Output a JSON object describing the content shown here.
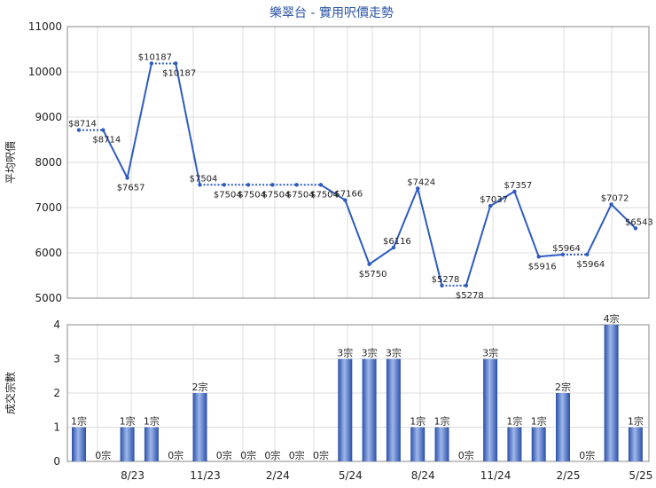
{
  "chart_data": [
    {
      "type": "line",
      "title": "樂翠台 - 實用呎價走勢",
      "ylabel": "平均呎價",
      "ylim": [
        5000,
        11000
      ],
      "yticks": [
        5000,
        6000,
        7000,
        8000,
        9000,
        10000,
        11000
      ],
      "grid": true,
      "points": [
        {
          "x": 0,
          "y": 8714,
          "label": "$8714"
        },
        {
          "x": 1,
          "y": 8714,
          "label": "$8714"
        },
        {
          "x": 2,
          "y": 7657,
          "label": "$7657"
        },
        {
          "x": 3,
          "y": 10187,
          "label": "$10187"
        },
        {
          "x": 4,
          "y": 10187,
          "label": "$10187"
        },
        {
          "x": 5,
          "y": 7504,
          "label": "$7504"
        },
        {
          "x": 6,
          "y": 7504,
          "label": "$7504"
        },
        {
          "x": 7,
          "y": 7504,
          "label": "$7504"
        },
        {
          "x": 8,
          "y": 7504,
          "label": "$7504"
        },
        {
          "x": 9,
          "y": 7504,
          "label": "$7504"
        },
        {
          "x": 10,
          "y": 7504,
          "label": "$7504"
        },
        {
          "x": 11,
          "y": 7166,
          "label": "$7166"
        },
        {
          "x": 12,
          "y": 5750,
          "label": "$5750"
        },
        {
          "x": 13,
          "y": 6116,
          "label": "$6116"
        },
        {
          "x": 14,
          "y": 7424,
          "label": "$7424"
        },
        {
          "x": 15,
          "y": 5278,
          "label": "$5278"
        },
        {
          "x": 16,
          "y": 5278,
          "label": "$5278"
        },
        {
          "x": 17,
          "y": 7037,
          "label": "$7037"
        },
        {
          "x": 18,
          "y": 7357,
          "label": "$7357"
        },
        {
          "x": 19,
          "y": 5916,
          "label": "$5916"
        },
        {
          "x": 20,
          "y": 5964,
          "label": "$5964"
        },
        {
          "x": 21,
          "y": 5964,
          "label": "$5964"
        },
        {
          "x": 22,
          "y": 7072,
          "label": "$7072"
        },
        {
          "x": 23,
          "y": 6543,
          "label": "$6543"
        }
      ]
    },
    {
      "type": "bar",
      "ylabel": "成交宗數",
      "ylim": [
        0,
        4
      ],
      "yticks": [
        0,
        1,
        2,
        3,
        4
      ],
      "grid": true,
      "values": [
        1,
        0,
        1,
        1,
        0,
        2,
        0,
        0,
        0,
        0,
        0,
        3,
        3,
        3,
        1,
        1,
        0,
        3,
        1,
        1,
        2,
        0,
        4,
        1
      ],
      "bar_labels": [
        "1宗",
        "0宗",
        "1宗",
        "1宗",
        "0宗",
        "2宗",
        "0宗",
        "0宗",
        "0宗",
        "0宗",
        "0宗",
        "3宗",
        "3宗",
        "3宗",
        "1宗",
        "1宗",
        "0宗",
        "3宗",
        "1宗",
        "1宗",
        "2宗",
        "0宗",
        "4宗",
        "1宗"
      ],
      "x_ticks": [
        {
          "label": "8/23",
          "x": 2
        },
        {
          "label": "11/23",
          "x": 5
        },
        {
          "label": "2/24",
          "x": 8
        },
        {
          "label": "5/24",
          "x": 11
        },
        {
          "label": "8/24",
          "x": 14
        },
        {
          "label": "11/24",
          "x": 17
        },
        {
          "label": "2/25",
          "x": 20
        },
        {
          "label": "5/25",
          "x": 23
        }
      ]
    }
  ]
}
